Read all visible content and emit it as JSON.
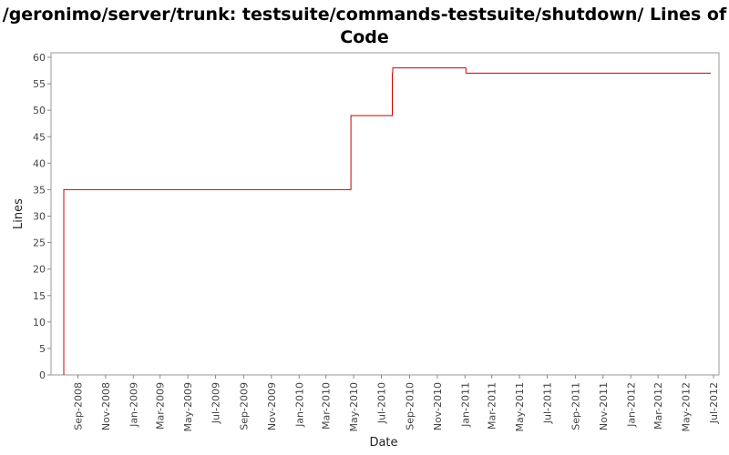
{
  "chart_data": {
    "type": "line",
    "title_line1": "/geronimo/server/trunk: testsuite/commands-testsuite/shutdown/ Lines of",
    "title_line2": "Code",
    "xlabel": "Date",
    "ylabel": "Lines",
    "ylim": [
      0,
      60
    ],
    "yticks": [
      0,
      5,
      10,
      15,
      20,
      25,
      30,
      35,
      40,
      45,
      50,
      55,
      60
    ],
    "xticks": [
      "Sep-2008",
      "Nov-2008",
      "Jan-2009",
      "Mar-2009",
      "May-2009",
      "Jul-2009",
      "Sep-2009",
      "Nov-2009",
      "Jan-2010",
      "Mar-2010",
      "May-2010",
      "Jul-2010",
      "Sep-2010",
      "Nov-2010",
      "Jan-2011",
      "Mar-2011",
      "May-2011",
      "Jul-2011",
      "Sep-2011",
      "Nov-2011",
      "Jan-2012",
      "Mar-2012",
      "May-2012",
      "Jul-2012"
    ],
    "xrange": [
      "2008-08-01",
      "2012-07-01"
    ],
    "grid": false,
    "line_color": "#cc0000",
    "series": [
      {
        "step": true,
        "points": [
          {
            "x": "2008-08-01",
            "y": 0
          },
          {
            "x": "2008-08-01",
            "y": 35
          },
          {
            "x": "2010-04-25",
            "y": 49
          },
          {
            "x": "2010-07-25",
            "y": 57
          },
          {
            "x": "2010-07-26",
            "y": 58
          },
          {
            "x": "2011-01-03",
            "y": 57
          },
          {
            "x": "2012-06-25",
            "y": 57
          }
        ]
      }
    ]
  }
}
